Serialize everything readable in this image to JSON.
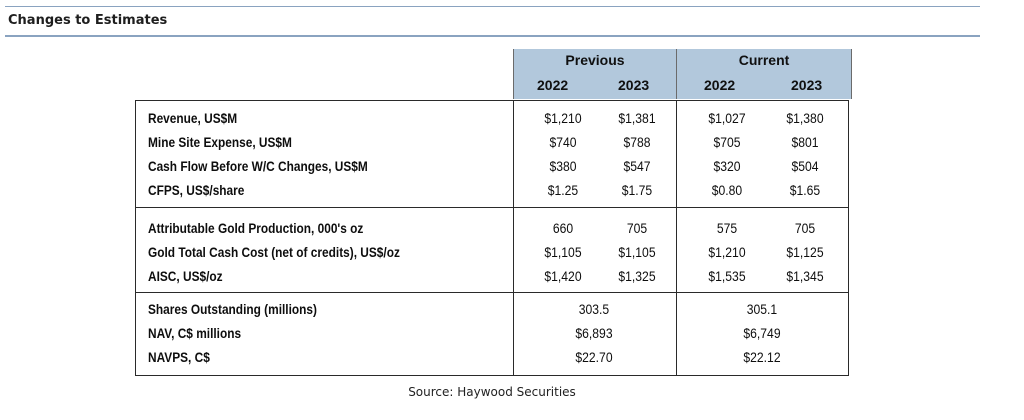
{
  "section_title": "Changes to Estimates",
  "header": {
    "previous": "Previous",
    "current": "Current",
    "years": [
      "2022",
      "2023",
      "2022",
      "2023"
    ]
  },
  "groups": [
    {
      "rows": [
        {
          "label": "Revenue, US$M",
          "values": [
            "$1,210",
            "$1,381",
            "$1,027",
            "$1,380"
          ]
        },
        {
          "label": "Mine Site Expense, US$M",
          "values": [
            "$740",
            "$788",
            "$705",
            "$801"
          ]
        },
        {
          "label": "Cash Flow Before W/C Changes, US$M",
          "values": [
            "$380",
            "$547",
            "$320",
            "$504"
          ]
        },
        {
          "label": "CFPS, US$/share",
          "values": [
            "$1.25",
            "$1.75",
            "$0.80",
            "$1.65"
          ]
        }
      ]
    },
    {
      "rows": [
        {
          "label": "Attributable Gold Production, 000's oz",
          "values": [
            "660",
            "705",
            "575",
            "705"
          ]
        },
        {
          "label": "Gold Total Cash Cost (net of credits), US$/oz",
          "values": [
            "$1,105",
            "$1,105",
            "$1,210",
            "$1,125"
          ]
        },
        {
          "label": "AISC, US$/oz",
          "values": [
            "$1,420",
            "$1,325",
            "$1,535",
            "$1,345"
          ]
        }
      ]
    },
    {
      "rows": [
        {
          "label": "Shares Outstanding (millions)",
          "previous": "303.5",
          "current": "305.1"
        },
        {
          "label": "NAV, C$ millions",
          "previous": "$6,893",
          "current": "$6,749"
        },
        {
          "label": "NAVPS, C$",
          "previous": "$22.70",
          "current": "$22.12"
        }
      ]
    }
  ],
  "source": "Source: Haywood Securities"
}
